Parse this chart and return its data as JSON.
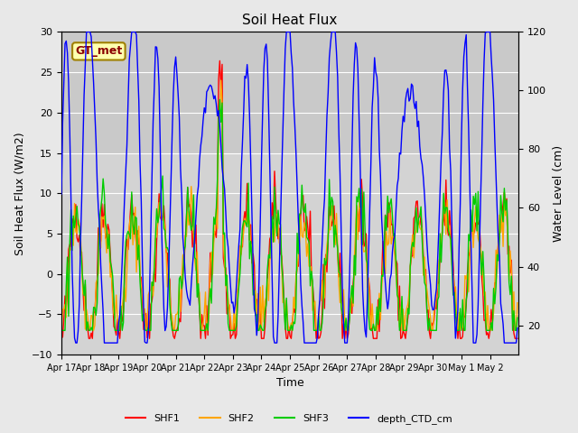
{
  "title": "Soil Heat Flux",
  "xlabel": "Time",
  "ylabel_left": "Soil Heat Flux (W/m2)",
  "ylabel_right": "Water Level (cm)",
  "annotation": "GT_met",
  "ylim_left": [
    -10,
    30
  ],
  "ylim_right": [
    10,
    120
  ],
  "colors": {
    "SHF1": "#ff0000",
    "SHF2": "#ffa500",
    "SHF3": "#00cc00",
    "depth_CTD_cm": "#0000ff"
  },
  "linewidth": 1.0,
  "background_color": "#e8e8e8",
  "plot_bg_color": "#d3d3d3",
  "shading_color": "#c8c8c8",
  "grid_color": "#ffffff",
  "legend_labels": [
    "SHF1",
    "SHF2",
    "SHF3",
    "depth_CTD_cm"
  ],
  "x_tick_labels": [
    "Apr 17",
    "Apr 18",
    "Apr 19",
    "Apr 20",
    "Apr 21",
    "Apr 22",
    "Apr 23",
    "Apr 24",
    "Apr 25",
    "Apr 26",
    "Apr 27",
    "Apr 28",
    "Apr 29",
    "Apr 30",
    "May 1",
    "May 2"
  ],
  "figsize": [
    6.4,
    4.8
  ],
  "dpi": 100
}
